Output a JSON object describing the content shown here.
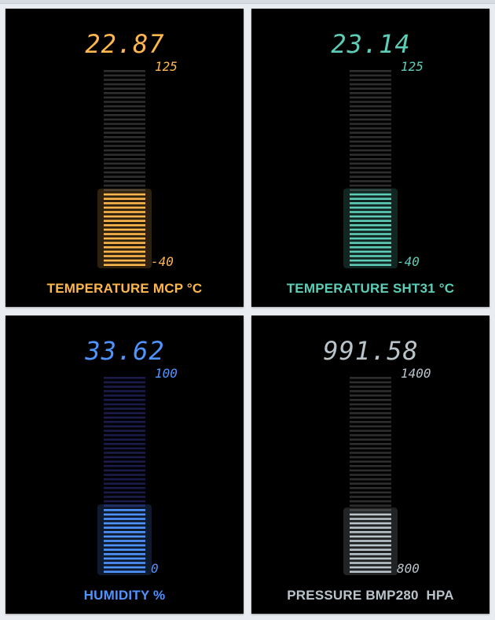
{
  "gauges": [
    {
      "label": "TEMPERATURE MCP °C",
      "value": "22.87",
      "value_num": 22.87,
      "max": "125",
      "max_num": 125,
      "min": "-40",
      "min_num": -40,
      "color": "#ffb74d",
      "track_color": "#2e2e2e"
    },
    {
      "label": "TEMPERATURE SHT31 °C",
      "value": "23.14",
      "value_num": 23.14,
      "max": "125",
      "max_num": 125,
      "min": "-40",
      "min_num": -40,
      "color": "#5ecdb8",
      "track_color": "#2e2e2e"
    },
    {
      "label": "HUMIDITY %",
      "value": "33.62",
      "value_num": 33.62,
      "max": "100",
      "max_num": 100,
      "min": "0",
      "min_num": 0,
      "color": "#4f93ff",
      "track_color": "#1c1c4a"
    },
    {
      "label": "PRESSURE BMP280  HPA",
      "value": "991.58",
      "value_num": 991.58,
      "max": "1400",
      "max_num": 1400,
      "min": "800",
      "min_num": 800,
      "color": "#b9c3ca",
      "track_color": "#2e2e2e"
    }
  ]
}
